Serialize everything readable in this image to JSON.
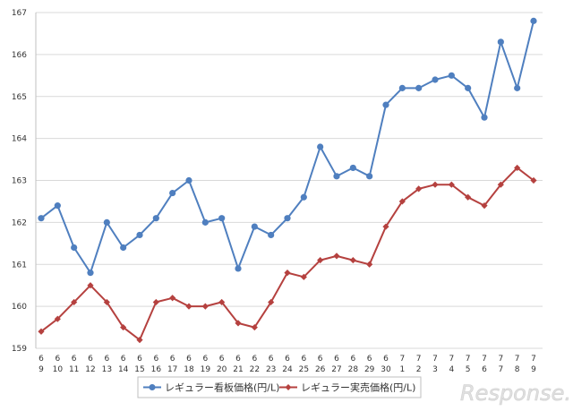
{
  "chart_data": {
    "type": "line",
    "title": "",
    "xlabel": "",
    "ylabel": "",
    "ylim": [
      159,
      167
    ],
    "y_ticks": [
      "159",
      "160",
      "161",
      "162",
      "163",
      "164",
      "165",
      "166",
      "167"
    ],
    "grid": true,
    "legend_position": "bottom",
    "x_months": [
      "6",
      "6",
      "6",
      "6",
      "6",
      "6",
      "6",
      "6",
      "6",
      "6",
      "6",
      "6",
      "6",
      "6",
      "6",
      "6",
      "6",
      "6",
      "6",
      "6",
      "6",
      "6",
      "7",
      "7",
      "7",
      "7",
      "7",
      "7",
      "7",
      "7",
      "7"
    ],
    "x_days": [
      "9",
      "10",
      "11",
      "12",
      "13",
      "14",
      "15",
      "16",
      "17",
      "18",
      "19",
      "20",
      "21",
      "22",
      "23",
      "24",
      "25",
      "26",
      "27",
      "28",
      "29",
      "30",
      "1",
      "2",
      "3",
      "4",
      "5",
      "6",
      "7",
      "8",
      "9"
    ],
    "series": [
      {
        "name": "レギュラー看板価格(円/L)",
        "color": "#4f7fbf",
        "marker": "circle",
        "values": [
          162.1,
          162.4,
          161.4,
          160.8,
          162.0,
          161.4,
          161.7,
          162.1,
          162.7,
          163.0,
          162.0,
          162.1,
          160.9,
          161.9,
          161.7,
          162.1,
          162.6,
          163.8,
          163.1,
          163.3,
          163.1,
          164.8,
          165.2,
          165.2,
          165.4,
          165.5,
          165.2,
          164.5,
          166.3,
          165.2,
          166.8
        ]
      },
      {
        "name": "レギュラー実売価格(円/L)",
        "color": "#b5413f",
        "marker": "diamond",
        "values": [
          159.4,
          159.7,
          160.1,
          160.5,
          160.1,
          159.5,
          159.2,
          160.1,
          160.2,
          160.0,
          160.0,
          160.1,
          159.6,
          159.5,
          160.1,
          160.8,
          160.7,
          161.1,
          161.2,
          161.1,
          161.0,
          161.9,
          162.5,
          162.8,
          162.9,
          162.9,
          162.6,
          162.4,
          162.9,
          163.3,
          163.0
        ]
      }
    ]
  },
  "watermark": {
    "text": "Response."
  }
}
